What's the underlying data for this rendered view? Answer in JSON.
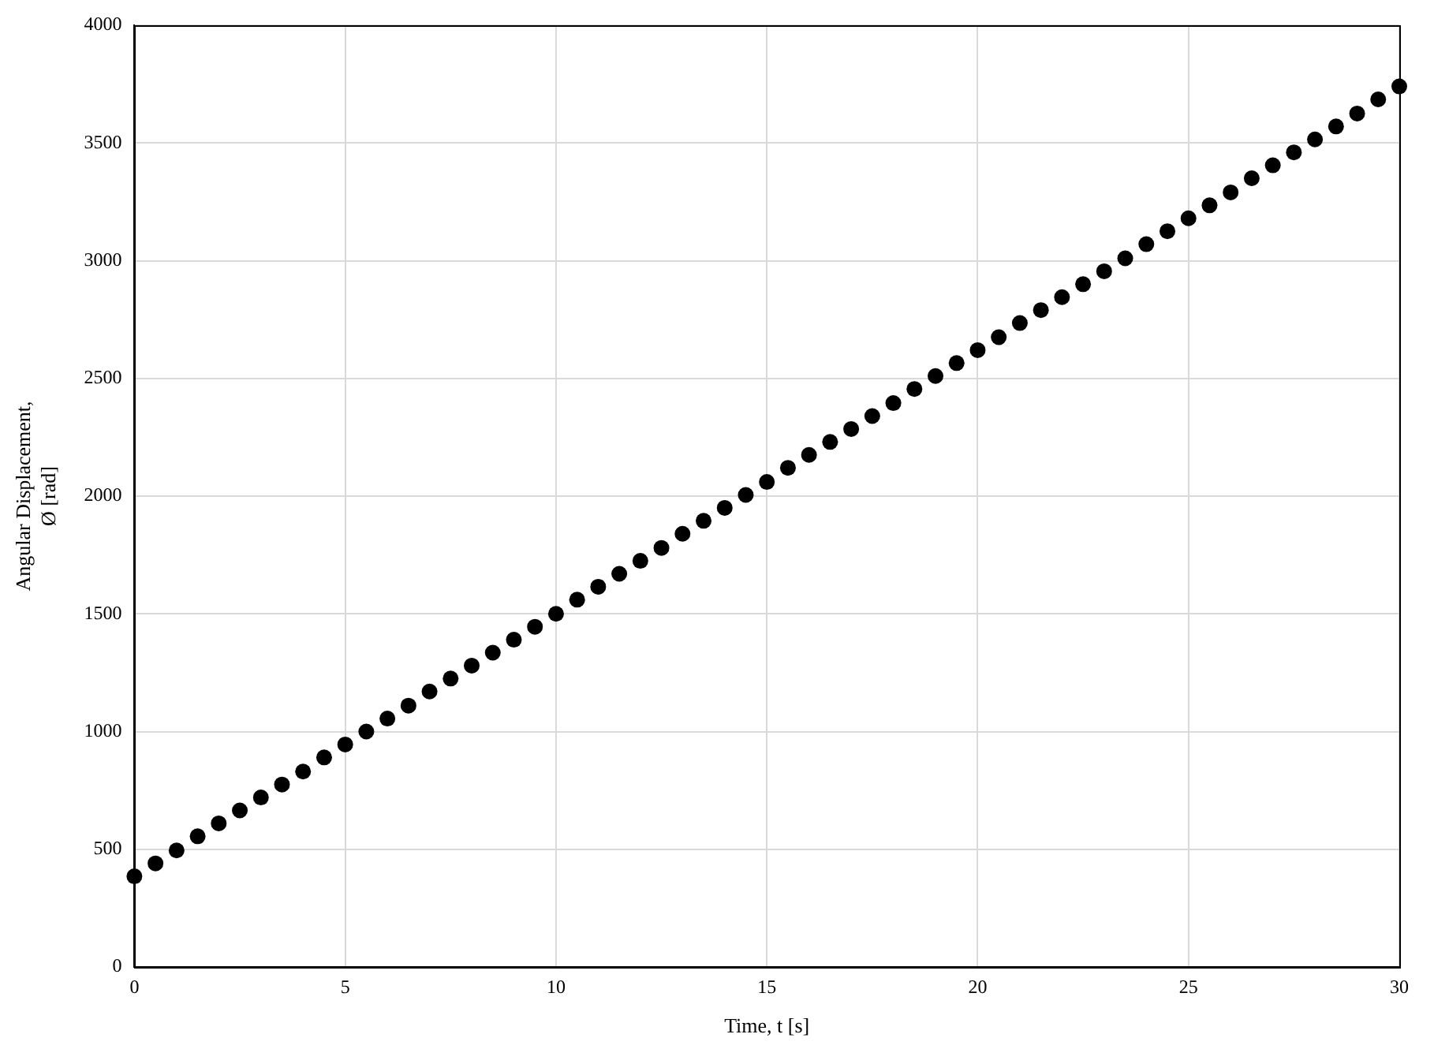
{
  "chart_data": {
    "type": "scatter",
    "xlabel": "Time, t [s]",
    "ylabel": "Angular Displacement,\nØ [rad]",
    "x": [
      0,
      0.5,
      1,
      1.5,
      2,
      2.5,
      3,
      3.5,
      4,
      4.5,
      5,
      5.5,
      6,
      6.5,
      7,
      7.5,
      8,
      8.5,
      9,
      9.5,
      10,
      10.5,
      11,
      11.5,
      12,
      12.5,
      13,
      13.5,
      14,
      14.5,
      15,
      15.5,
      16,
      16.5,
      17,
      17.5,
      18,
      18.5,
      19,
      19.5,
      20,
      20.5,
      21,
      21.5,
      22,
      22.5,
      23,
      23.5,
      24,
      24.5,
      25,
      25.5,
      26,
      26.5,
      27,
      27.5,
      28,
      28.5,
      29,
      29.5,
      30
    ],
    "series": [
      {
        "color": "#000000",
        "values": [
          385,
          440,
          495,
          555,
          610,
          665,
          720,
          775,
          830,
          890,
          945,
          1000,
          1055,
          1110,
          1170,
          1225,
          1280,
          1335,
          1390,
          1445,
          1500,
          1560,
          1615,
          1670,
          1725,
          1780,
          1840,
          1895,
          1950,
          2005,
          2060,
          2120,
          2175,
          2230,
          2285,
          2340,
          2395,
          2455,
          2510,
          2565,
          2620,
          2675,
          2735,
          2790,
          2845,
          2900,
          2955,
          3010,
          3070,
          3125,
          3180,
          3235,
          3290,
          3350,
          3405,
          3460,
          3515,
          3570,
          3625,
          3685,
          3740
        ]
      }
    ],
    "xlim": [
      0,
      30
    ],
    "xticks": [
      0,
      5,
      10,
      15,
      20,
      25,
      30
    ],
    "ylim": [
      0,
      4000
    ],
    "yticks": [
      0,
      500,
      1000,
      1500,
      2000,
      2500,
      3000,
      3500,
      4000
    ],
    "grid": true,
    "marker": "circle"
  }
}
